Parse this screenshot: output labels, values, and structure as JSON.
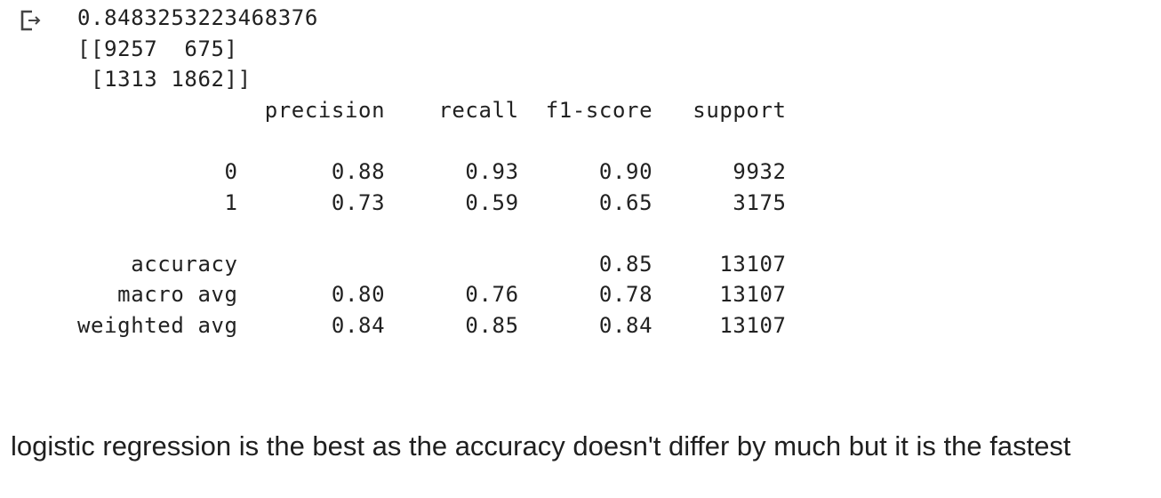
{
  "output_cell": {
    "icon": "output-redirect-icon",
    "lines": [
      "0.8483253223468376",
      "[[9257  675]",
      " [1313 1862]]",
      "              precision    recall  f1-score   support",
      "",
      "           0       0.88      0.93      0.90      9932",
      "           1       0.73      0.59      0.65      3175",
      "",
      "    accuracy                           0.85     13107",
      "   macro avg       0.80      0.76      0.78     13107",
      "weighted avg       0.84      0.85      0.84     13107"
    ]
  },
  "markdown_cell": {
    "text": "logistic regression is the best as the accuracy doesn't differ by much but it is the fastest"
  }
}
